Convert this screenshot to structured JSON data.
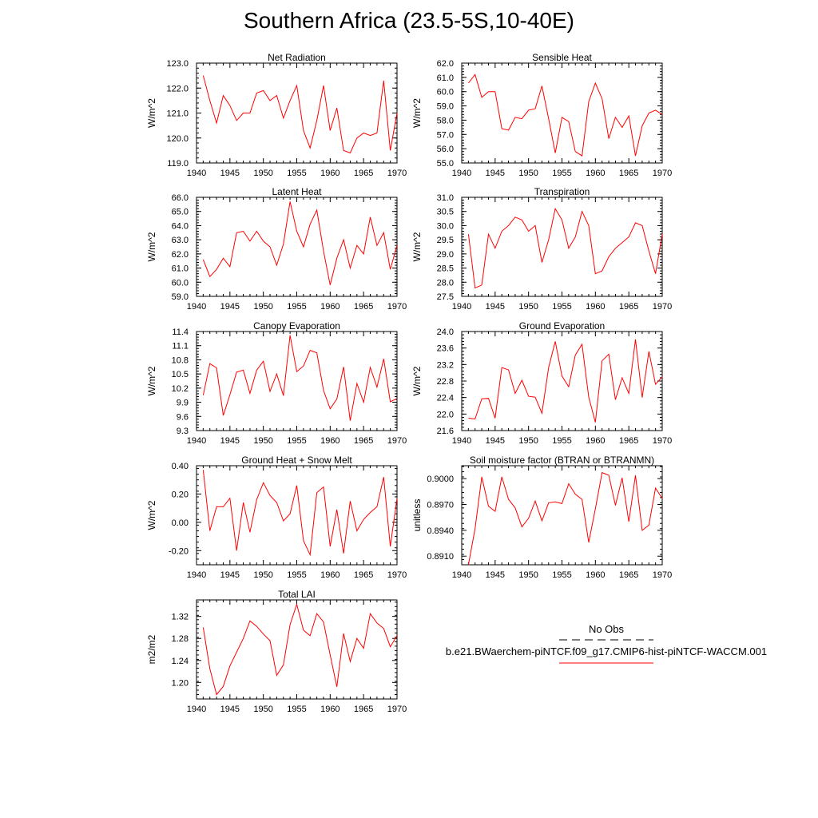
{
  "title": "Southern Africa (23.5-5S,10-40E)",
  "colors": {
    "model": "#ff0000",
    "obs": "#000000",
    "axis": "#000000"
  },
  "legend": {
    "obs_label": "No Obs",
    "model_label": "b.e21.BWaerchem-piNTCF.f09_g17.CMIP6-hist-piNTCF-WACCM.001"
  },
  "chart_data": [
    {
      "type": "line",
      "title": "Net Radiation",
      "ylabel": "W/m^2",
      "xlim": [
        1940,
        1970
      ],
      "ylim": [
        119.0,
        123.0
      ],
      "xticks": [
        "1940",
        "1945",
        "1950",
        "1955",
        "1960",
        "1965",
        "1970"
      ],
      "yticks": [
        "119.0",
        "120.0",
        "121.0",
        "122.0",
        "123.0"
      ],
      "x": [
        1941,
        1942,
        1943,
        1944,
        1945,
        1946,
        1947,
        1948,
        1949,
        1950,
        1951,
        1952,
        1953,
        1954,
        1955,
        1956,
        1957,
        1958,
        1959,
        1960,
        1961,
        1962,
        1963,
        1964,
        1965,
        1966,
        1967,
        1968,
        1969,
        1970
      ],
      "series": [
        {
          "values": [
            122.5,
            121.5,
            120.6,
            121.7,
            121.3,
            120.7,
            121.0,
            121.0,
            121.8,
            121.9,
            121.5,
            121.7,
            120.8,
            121.5,
            122.1,
            120.3,
            119.6,
            120.7,
            122.1,
            120.3,
            121.2,
            119.5,
            119.4,
            120.0,
            120.2,
            120.1,
            120.2,
            122.3,
            119.5,
            121.0
          ]
        }
      ]
    },
    {
      "type": "line",
      "title": "Sensible Heat",
      "ylabel": "W/m^2",
      "xlim": [
        1940,
        1970
      ],
      "ylim": [
        55.0,
        62.0
      ],
      "xticks": [
        "1940",
        "1945",
        "1950",
        "1955",
        "1960",
        "1965",
        "1970"
      ],
      "yticks": [
        "55.0",
        "56.0",
        "57.0",
        "58.0",
        "59.0",
        "60.0",
        "61.0",
        "62.0"
      ],
      "x": [
        1941,
        1942,
        1943,
        1944,
        1945,
        1946,
        1947,
        1948,
        1949,
        1950,
        1951,
        1952,
        1953,
        1954,
        1955,
        1956,
        1957,
        1958,
        1959,
        1960,
        1961,
        1962,
        1963,
        1964,
        1965,
        1966,
        1967,
        1968,
        1969,
        1970
      ],
      "series": [
        {
          "values": [
            60.6,
            61.2,
            59.6,
            60.0,
            60.0,
            57.4,
            57.3,
            58.2,
            58.1,
            58.7,
            58.8,
            60.4,
            58.1,
            55.7,
            58.2,
            57.9,
            55.8,
            55.5,
            59.3,
            60.6,
            59.5,
            56.7,
            58.2,
            57.5,
            58.3,
            55.5,
            57.6,
            58.5,
            58.7,
            58.4
          ]
        }
      ]
    },
    {
      "type": "line",
      "title": "Latent Heat",
      "ylabel": "W/m^2",
      "xlim": [
        1940,
        1970
      ],
      "ylim": [
        59.0,
        66.0
      ],
      "xticks": [
        "1940",
        "1945",
        "1950",
        "1955",
        "1960",
        "1965",
        "1970"
      ],
      "yticks": [
        "59.0",
        "60.0",
        "61.0",
        "62.0",
        "63.0",
        "64.0",
        "65.0",
        "66.0"
      ],
      "x": [
        1941,
        1942,
        1943,
        1944,
        1945,
        1946,
        1947,
        1948,
        1949,
        1950,
        1951,
        1952,
        1953,
        1954,
        1955,
        1956,
        1957,
        1958,
        1959,
        1960,
        1961,
        1962,
        1963,
        1964,
        1965,
        1966,
        1967,
        1968,
        1969,
        1970
      ],
      "series": [
        {
          "values": [
            61.6,
            60.4,
            60.9,
            61.7,
            61.1,
            63.5,
            63.6,
            62.9,
            63.6,
            62.9,
            62.5,
            61.2,
            62.7,
            65.7,
            63.6,
            62.5,
            64.1,
            65.1,
            62.2,
            59.8,
            61.7,
            63.0,
            61.0,
            62.6,
            62.0,
            64.6,
            62.6,
            63.5,
            60.9,
            62.6
          ]
        }
      ]
    },
    {
      "type": "line",
      "title": "Transpiration",
      "ylabel": "W/m^2",
      "xlim": [
        1940,
        1970
      ],
      "ylim": [
        27.5,
        31.0
      ],
      "xticks": [
        "1940",
        "1945",
        "1950",
        "1955",
        "1960",
        "1965",
        "1970"
      ],
      "yticks": [
        "27.5",
        "28.0",
        "28.5",
        "29.0",
        "29.5",
        "30.0",
        "30.5",
        "31.0"
      ],
      "x": [
        1941,
        1942,
        1943,
        1944,
        1945,
        1946,
        1947,
        1948,
        1949,
        1950,
        1951,
        1952,
        1953,
        1954,
        1955,
        1956,
        1957,
        1958,
        1959,
        1960,
        1961,
        1962,
        1963,
        1964,
        1965,
        1966,
        1967,
        1968,
        1969,
        1970
      ],
      "series": [
        {
          "values": [
            29.7,
            27.8,
            27.9,
            29.7,
            29.2,
            29.8,
            30.0,
            30.3,
            30.2,
            29.8,
            30.0,
            28.7,
            29.5,
            30.6,
            30.2,
            29.2,
            29.6,
            30.5,
            30.0,
            28.3,
            28.4,
            28.9,
            29.2,
            29.4,
            29.6,
            30.1,
            30.0,
            29.1,
            28.3,
            29.7
          ]
        }
      ]
    },
    {
      "type": "line",
      "title": "Canopy Evaporation",
      "ylabel": "W/m^2",
      "xlim": [
        1940,
        1970
      ],
      "ylim": [
        9.3,
        11.4
      ],
      "xticks": [
        "1940",
        "1945",
        "1950",
        "1955",
        "1960",
        "1965",
        "1970"
      ],
      "yticks": [
        "9.3",
        "9.6",
        "9.9",
        "10.2",
        "10.5",
        "10.8",
        "11.1",
        "11.4"
      ],
      "x": [
        1941,
        1942,
        1943,
        1944,
        1945,
        1946,
        1947,
        1948,
        1949,
        1950,
        1951,
        1952,
        1953,
        1954,
        1955,
        1956,
        1957,
        1958,
        1959,
        1960,
        1961,
        1962,
        1963,
        1964,
        1965,
        1966,
        1967,
        1968,
        1969,
        1970
      ],
      "series": [
        {
          "values": [
            10.05,
            10.72,
            10.63,
            9.62,
            10.06,
            10.54,
            10.58,
            10.09,
            10.58,
            10.77,
            10.13,
            10.5,
            10.04,
            11.32,
            10.55,
            10.67,
            11.0,
            10.95,
            10.15,
            9.76,
            9.97,
            10.65,
            9.51,
            10.3,
            9.9,
            10.64,
            10.22,
            10.82,
            9.91,
            9.98
          ]
        }
      ]
    },
    {
      "type": "line",
      "title": "Ground Evaporation",
      "ylabel": "W/m^2",
      "xlim": [
        1940,
        1970
      ],
      "ylim": [
        21.6,
        24.0
      ],
      "xticks": [
        "1940",
        "1945",
        "1950",
        "1955",
        "1960",
        "1965",
        "1970"
      ],
      "yticks": [
        "21.6",
        "22.0",
        "22.4",
        "22.8",
        "23.2",
        "23.6",
        "24.0"
      ],
      "x": [
        1941,
        1942,
        1943,
        1944,
        1945,
        1946,
        1947,
        1948,
        1949,
        1950,
        1951,
        1952,
        1953,
        1954,
        1955,
        1956,
        1957,
        1958,
        1959,
        1960,
        1961,
        1962,
        1963,
        1964,
        1965,
        1966,
        1967,
        1968,
        1969,
        1970
      ],
      "series": [
        {
          "values": [
            21.9,
            21.88,
            22.37,
            22.38,
            21.9,
            23.13,
            23.07,
            22.5,
            22.82,
            22.43,
            22.41,
            22.02,
            23.13,
            23.76,
            22.92,
            22.66,
            23.43,
            23.69,
            22.41,
            21.8,
            23.29,
            23.45,
            22.35,
            22.88,
            22.5,
            23.81,
            22.4,
            23.52,
            22.72,
            22.9
          ]
        }
      ]
    },
    {
      "type": "line",
      "title": "Ground Heat + Snow Melt",
      "ylabel": "W/m^2",
      "xlim": [
        1940,
        1970
      ],
      "ylim": [
        -0.3,
        0.4
      ],
      "xticks": [
        "1940",
        "1945",
        "1950",
        "1955",
        "1960",
        "1965",
        "1970"
      ],
      "yticks": [
        "-0.20",
        "0.00",
        "0.20",
        "0.40"
      ],
      "ytick_values": [
        -0.2,
        0.0,
        0.2,
        0.4
      ],
      "x": [
        1941,
        1942,
        1943,
        1944,
        1945,
        1946,
        1947,
        1948,
        1949,
        1950,
        1951,
        1952,
        1953,
        1954,
        1955,
        1956,
        1957,
        1958,
        1959,
        1960,
        1961,
        1962,
        1963,
        1964,
        1965,
        1966,
        1967,
        1968,
        1969,
        1970
      ],
      "series": [
        {
          "values": [
            0.37,
            -0.06,
            0.11,
            0.11,
            0.17,
            -0.2,
            0.14,
            -0.07,
            0.16,
            0.28,
            0.19,
            0.14,
            0.01,
            0.06,
            0.26,
            -0.13,
            -0.23,
            0.21,
            0.25,
            -0.17,
            0.09,
            -0.22,
            0.15,
            -0.06,
            0.02,
            0.07,
            0.11,
            0.32,
            -0.17,
            0.17
          ]
        }
      ]
    },
    {
      "type": "line",
      "title": "Soil moisture factor (BTRAN or BTRANMN)",
      "ylabel": "unitless",
      "xlim": [
        1940,
        1970
      ],
      "ylim": [
        0.89,
        0.9015
      ],
      "xticks": [
        "1940",
        "1945",
        "1950",
        "1955",
        "1960",
        "1965",
        "1970"
      ],
      "yticks": [
        "0.8910",
        "0.8940",
        "0.8970",
        "0.9000"
      ],
      "ytick_values": [
        0.891,
        0.894,
        0.897,
        0.9
      ],
      "x": [
        1941,
        1942,
        1943,
        1944,
        1945,
        1946,
        1947,
        1948,
        1949,
        1950,
        1951,
        1952,
        1953,
        1954,
        1955,
        1956,
        1957,
        1958,
        1959,
        1960,
        1961,
        1962,
        1963,
        1964,
        1965,
        1966,
        1967,
        1968,
        1969,
        1970
      ],
      "series": [
        {
          "values": [
            0.89,
            0.8942,
            0.9002,
            0.8968,
            0.8962,
            0.9002,
            0.8976,
            0.8966,
            0.8944,
            0.8954,
            0.8974,
            0.8951,
            0.8972,
            0.8973,
            0.8971,
            0.8994,
            0.8982,
            0.8976,
            0.8926,
            0.8965,
            0.9007,
            0.9004,
            0.8969,
            0.9001,
            0.895,
            0.9004,
            0.894,
            0.8946,
            0.8989,
            0.8977
          ]
        }
      ]
    },
    {
      "type": "line",
      "title": "Total LAI",
      "ylabel": "m2/m2",
      "xlim": [
        1940,
        1970
      ],
      "ylim": [
        1.17,
        1.35
      ],
      "xticks": [
        "1940",
        "1945",
        "1950",
        "1955",
        "1960",
        "1965",
        "1970"
      ],
      "yticks": [
        "1.20",
        "1.24",
        "1.28",
        "1.32"
      ],
      "ytick_values": [
        1.2,
        1.24,
        1.28,
        1.32
      ],
      "x": [
        1941,
        1942,
        1943,
        1944,
        1945,
        1946,
        1947,
        1948,
        1949,
        1950,
        1951,
        1952,
        1953,
        1954,
        1955,
        1956,
        1957,
        1958,
        1959,
        1960,
        1961,
        1962,
        1963,
        1964,
        1965,
        1966,
        1967,
        1968,
        1969,
        1970
      ],
      "series": [
        {
          "values": [
            1.3,
            1.225,
            1.178,
            1.193,
            1.23,
            1.255,
            1.28,
            1.312,
            1.302,
            1.288,
            1.276,
            1.213,
            1.232,
            1.305,
            1.342,
            1.295,
            1.285,
            1.325,
            1.31,
            1.25,
            1.192,
            1.289,
            1.238,
            1.28,
            1.262,
            1.325,
            1.308,
            1.298,
            1.265,
            1.285
          ]
        }
      ]
    }
  ]
}
